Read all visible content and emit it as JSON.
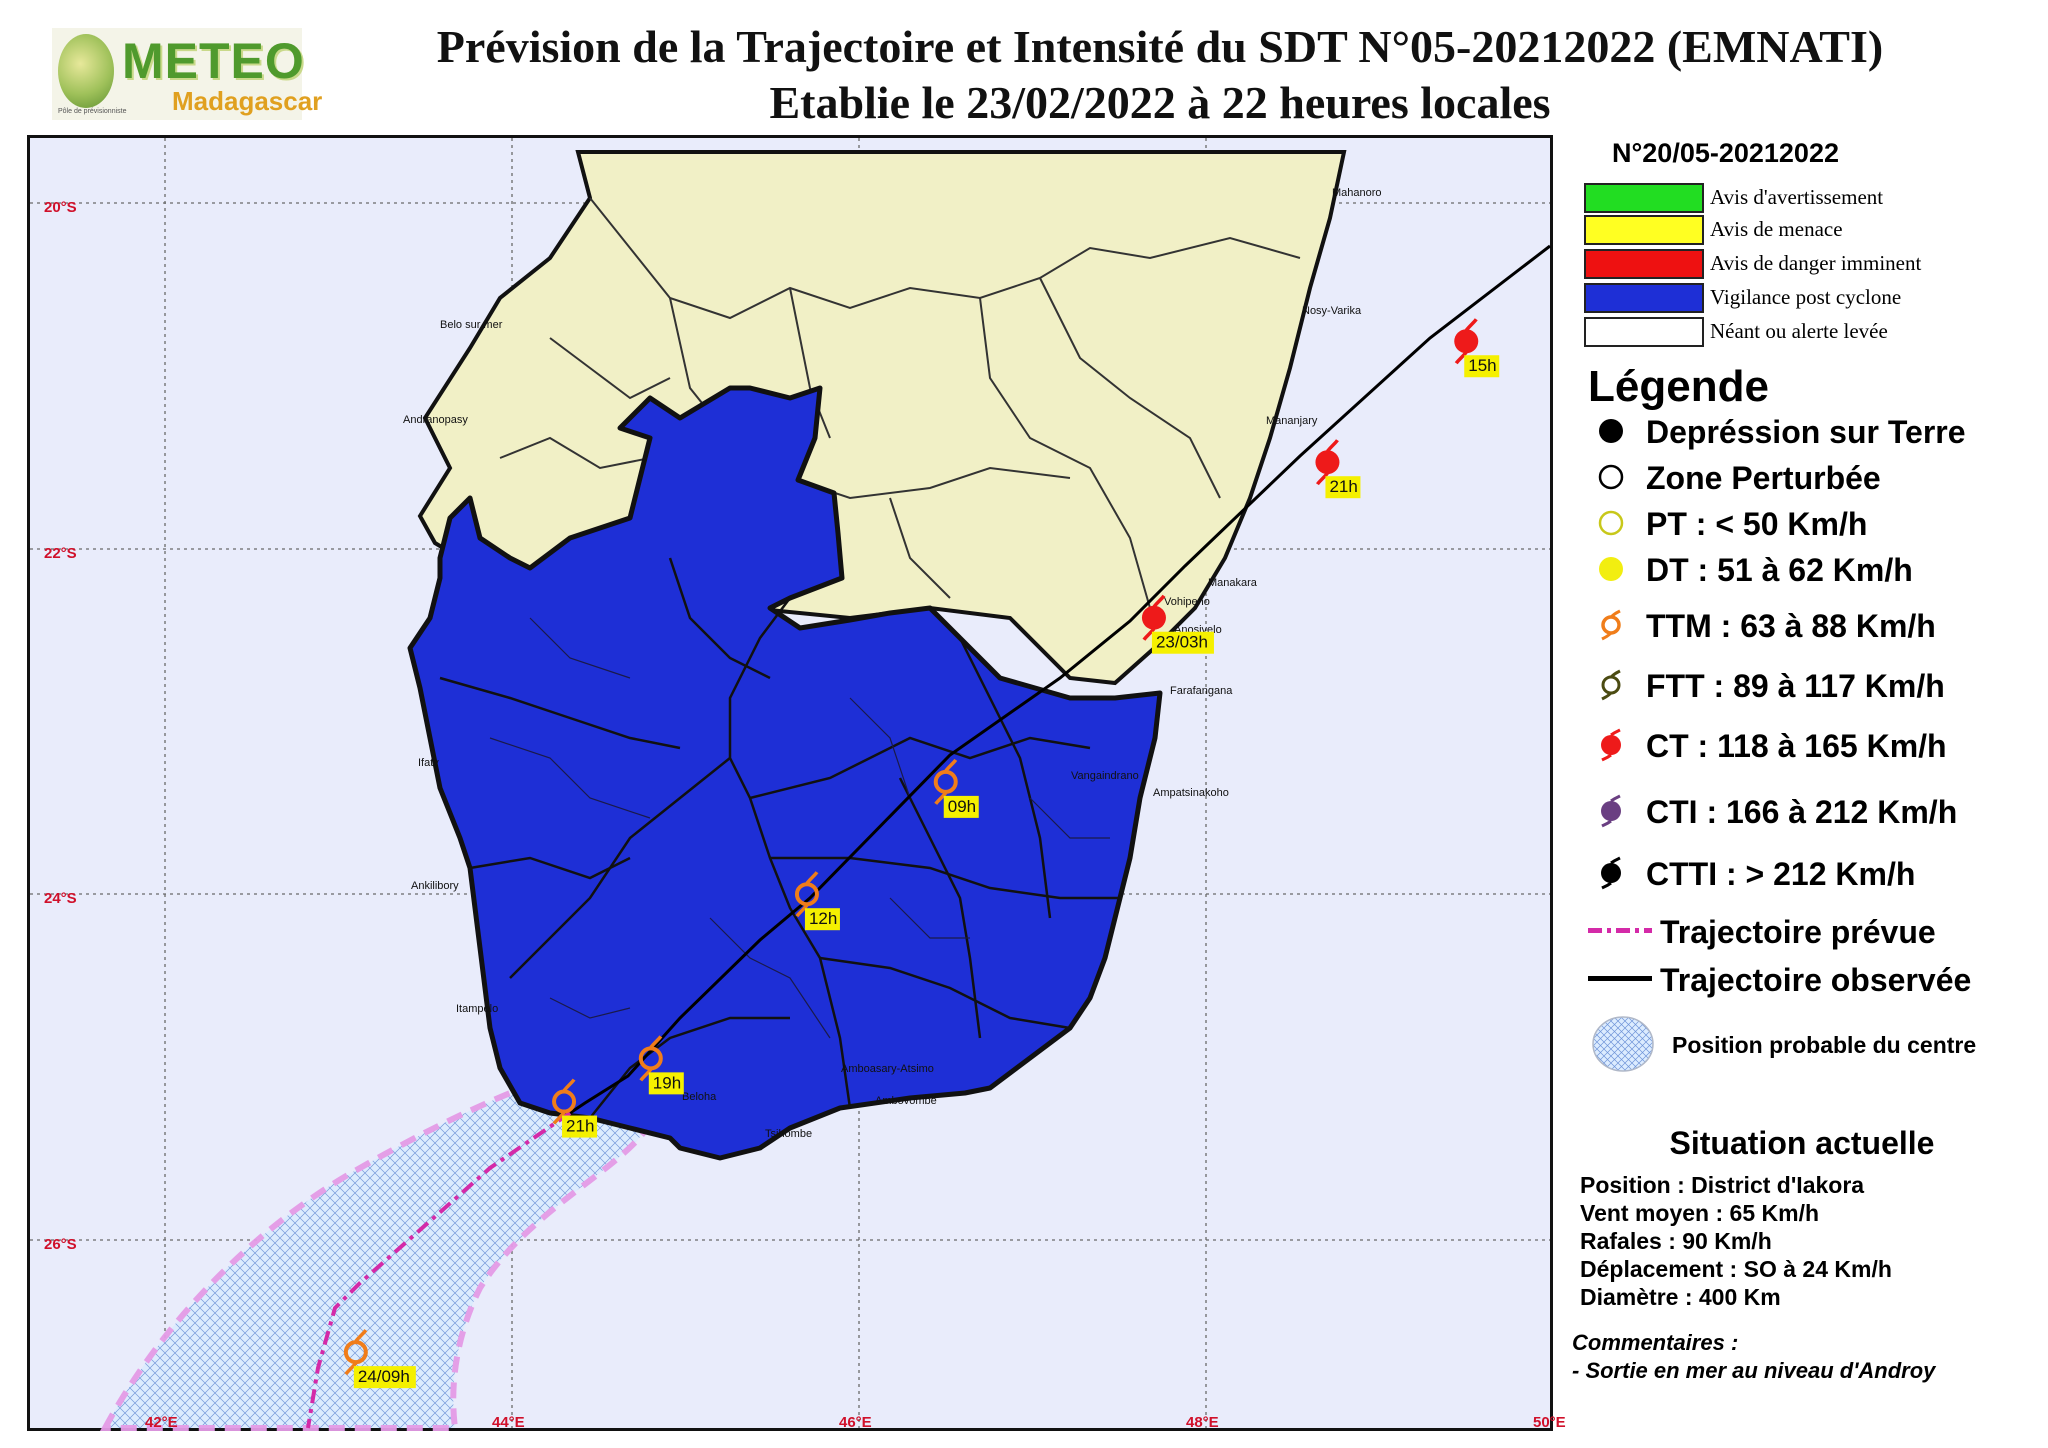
{
  "header": {
    "logo_text": "METEO",
    "logo_sub": "Madagascar",
    "logo_tagline": "Pôle de prévisionniste",
    "title_line1": "Prévision de la Trajectoire et Intensité du SDT N°05-20212022 (EMNATI)",
    "title_line2": "Etablie le 23/02/2022 à 22 heures locales"
  },
  "map": {
    "lat_labels": [
      "20°S",
      "22°S",
      "24°S",
      "26°S"
    ],
    "lon_labels": [
      "42°E",
      "44°E",
      "46°E",
      "48°E",
      "50°E"
    ],
    "cities": [
      "Mahanoro",
      "Nosy-Varika",
      "Belo sur mer",
      "Andranopasy",
      "Mananjary",
      "Manakara",
      "Vohipeno",
      "Anosivelo",
      "Farafangana",
      "Ifaty",
      "Vangaindrano",
      "Ampatsinakoho",
      "Ankilibory",
      "Itampolo",
      "Ambovombe",
      "Amboasary-Atsimo",
      "Beloha",
      "Tsihombe"
    ],
    "track_points": [
      {
        "label": "15h",
        "lat": -20.8,
        "lon": 49.5,
        "category": "CT"
      },
      {
        "label": "21h",
        "lat": -21.5,
        "lon": 48.7,
        "category": "CT"
      },
      {
        "label": "23/03h",
        "lat": -22.4,
        "lon": 47.7,
        "category": "CT"
      },
      {
        "label": "09h",
        "lat": -23.35,
        "lon": 46.5,
        "category": "TTM"
      },
      {
        "label": "12h",
        "lat": -24.0,
        "lon": 45.7,
        "category": "TTM"
      },
      {
        "label": "19h",
        "lat": -24.95,
        "lon": 44.8,
        "category": "TTM"
      },
      {
        "label": "21h",
        "lat": -25.2,
        "lon": 44.3,
        "category": "TTM"
      },
      {
        "label": "24/09h",
        "lat": -26.65,
        "lon": 43.1,
        "category": "TTM"
      }
    ],
    "danger_zone_color": "#1e2fd6",
    "land_color": "#f1f0c6",
    "sea_color": "#e9ecfb"
  },
  "panel": {
    "bulletin_number": "N°20/05-20212022",
    "alerts": [
      {
        "label": "Avis d'avertissement",
        "color": "#22dd22"
      },
      {
        "label": "Avis de menace",
        "color": "#ffff22"
      },
      {
        "label": "Avis de danger imminent",
        "color": "#ee1111"
      },
      {
        "label": "Vigilance post cyclone",
        "color": "#1e2fd6"
      },
      {
        "label": "Néant ou alerte levée",
        "color": "#ffffff"
      }
    ],
    "legend_title": "Légende",
    "legend": [
      {
        "label": "Depréssion sur Terre",
        "icon": "filled-black-dot"
      },
      {
        "label": "Zone Perturbée",
        "icon": "hollow-black-circle"
      },
      {
        "label": "PT : < 50 Km/h",
        "icon": "hollow-yellow-circle"
      },
      {
        "label": "DT : 51 à 62 Km/h",
        "icon": "filled-yellow-dot"
      },
      {
        "label": "TTM : 63 à 88 Km/h",
        "icon": "orange-cyclone-symbol"
      },
      {
        "label": "FTT : 89 à 117 Km/h",
        "icon": "olive-cyclone-symbol"
      },
      {
        "label": "CT : 118 à 165 Km/h",
        "icon": "red-cyclone-symbol"
      },
      {
        "label": "CTI : 166 à 212 Km/h",
        "icon": "purple-cyclone-symbol"
      },
      {
        "label": "CTTI : > 212 Km/h",
        "icon": "black-cyclone-symbol"
      },
      {
        "label": "Trajectoire prévue",
        "icon": "magenta-dashed-line"
      },
      {
        "label": "Trajectoire observée",
        "icon": "black-solid-line"
      },
      {
        "label": "Position probable du centre",
        "icon": "hatched-circle"
      }
    ],
    "situation_title": "Situation actuelle",
    "situation": [
      "Position : District d'Iakora",
      "Vent moyen : 65 Km/h",
      "Rafales : 90 Km/h",
      "Déplacement : SO à 24 Km/h",
      "Diamètre : 400 Km"
    ],
    "comments_title": "Commentaires :",
    "comments": [
      "- Sortie en mer au niveau d'Androy"
    ]
  }
}
